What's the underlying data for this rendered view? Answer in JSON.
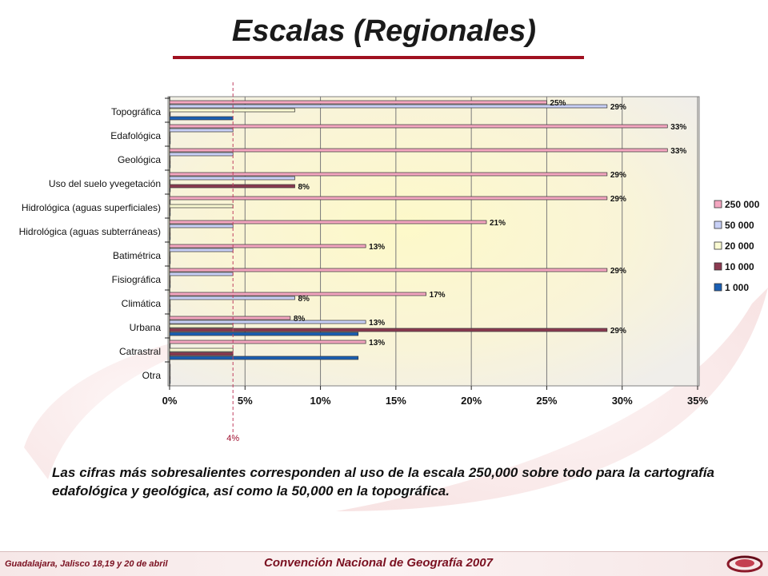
{
  "slide": {
    "title": "Escalas (Regionales)",
    "caption": "Las cifras más sobresalientes corresponden al uso de la escala 250,000 sobre todo para la cartografía edafológica y geológica, así como la 50,000 en la topográfica.",
    "footer_left": "Guadalajara, Jalisco 18,19 y 20 de abril",
    "footer_center": "Convención Nacional de Geografía 2007",
    "reference_line_label": "4%",
    "reference_line_value": 4.2
  },
  "colors": {
    "accent": "#a01020",
    "plot_bg_inner": "#fdf8c8",
    "plot_bg_outer": "#f4f1ea"
  },
  "chart_data": {
    "type": "bar",
    "orientation": "horizontal",
    "categories": [
      "Topográfica",
      "Edafológica",
      "Geológica",
      "Uso del suelo yvegetación",
      "Hidrológica (aguas superficiales)",
      "Hidrológica (aguas subterráneas)",
      "Batimétrica",
      "Fisiográfica",
      "Climática",
      "Urbana",
      "Catrastral",
      "Otra"
    ],
    "series": [
      {
        "name": "250 000",
        "color": "#f4a6c0",
        "values": [
          25,
          33,
          33,
          29,
          29,
          21,
          13,
          29,
          17,
          8,
          13,
          0
        ],
        "labels": [
          "25%",
          "33%",
          "33%",
          "29%",
          "29%",
          "21%",
          "13%",
          "29%",
          "17%",
          "8%",
          "13%",
          ""
        ]
      },
      {
        "name": "50 000",
        "color": "#c8d0f6",
        "values": [
          29,
          4.2,
          4.2,
          8.3,
          0,
          4.2,
          4.2,
          4.2,
          8.3,
          13,
          0,
          0
        ],
        "labels": [
          "29%",
          "",
          "",
          "",
          "",
          "",
          "",
          "",
          "8%",
          "13%",
          "",
          ""
        ]
      },
      {
        "name": "20 000",
        "color": "#fafad2",
        "values": [
          8.3,
          0,
          0,
          0,
          4.2,
          0,
          0,
          0,
          0,
          4.2,
          4.2,
          0
        ],
        "labels": [
          "",
          "",
          "",
          "",
          "",
          "",
          "",
          "",
          "",
          "",
          "",
          ""
        ]
      },
      {
        "name": "10 000",
        "color": "#8b3a50",
        "values": [
          0,
          0,
          0,
          8.3,
          0,
          0,
          0,
          0,
          0,
          29,
          4.2,
          0
        ],
        "labels": [
          "",
          "",
          "",
          "8%",
          "",
          "",
          "",
          "",
          "",
          "29%",
          "",
          ""
        ]
      },
      {
        "name": "1 000",
        "color": "#1a5fb4",
        "values": [
          4.2,
          0,
          0,
          0,
          0,
          0,
          0,
          0,
          0,
          12.5,
          12.5,
          0
        ],
        "labels": [
          "",
          "",
          "",
          "",
          "",
          "",
          "",
          "",
          "",
          "",
          "",
          ""
        ]
      }
    ],
    "xlim": [
      0,
      35
    ],
    "xticks": [
      0,
      5,
      10,
      15,
      20,
      25,
      30,
      35
    ],
    "xtick_labels": [
      "0%",
      "5%",
      "10%",
      "15%",
      "20%",
      "25%",
      "30%",
      "35%"
    ],
    "grid": "vertical",
    "legend_position": "right"
  }
}
